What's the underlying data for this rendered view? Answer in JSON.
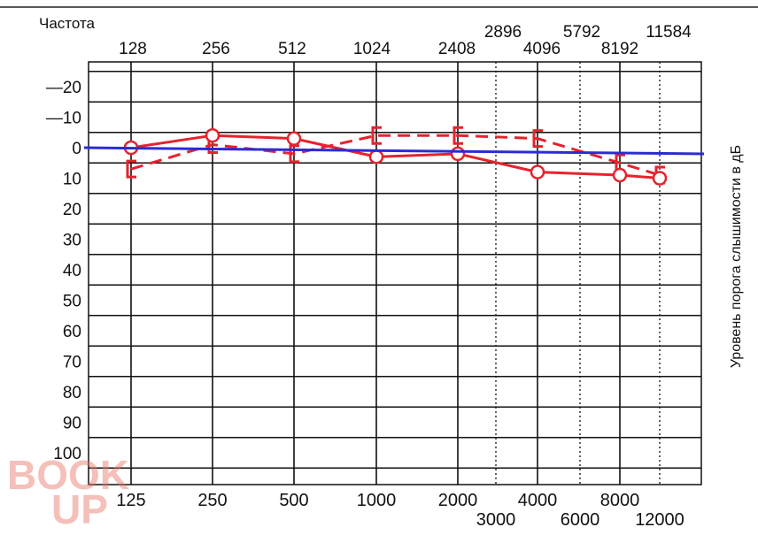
{
  "chart_data": {
    "type": "line",
    "title": "Частота",
    "xlabel": "",
    "ylabel": "Уровень порога слышимости в дБ",
    "y_reversed": true,
    "ylim": [
      -20,
      100
    ],
    "y_ticks": [
      -20,
      -10,
      0,
      10,
      20,
      30,
      40,
      50,
      60,
      70,
      80,
      90,
      100
    ],
    "y_tick_labels": [
      "—20",
      "—10",
      "0",
      "10",
      "20",
      "30",
      "40",
      "50",
      "60",
      "70",
      "80",
      "90",
      "100"
    ],
    "x_bottom_main_ticks": [
      "125",
      "250",
      "500",
      "1000",
      "2000",
      "4000",
      "8000"
    ],
    "x_bottom_intermediate_ticks": [
      "3000",
      "6000",
      "12000"
    ],
    "x_top_main_ticks": [
      "128",
      "256",
      "512",
      "1024",
      "2408",
      "4096",
      "8192"
    ],
    "x_top_intermediate_ticks": [
      "2896",
      "5792",
      "11584"
    ],
    "grid": true,
    "reference_line": {
      "y": 0,
      "color": "#2b2bd6"
    },
    "x": [
      125,
      250,
      500,
      1000,
      2000,
      4000,
      8000,
      12000
    ],
    "series": [
      {
        "style": "solid",
        "marker": "circle",
        "color": "#e5232e",
        "values": [
          0,
          -4,
          -3,
          3,
          2,
          8,
          9,
          10
        ]
      },
      {
        "style": "dashed",
        "marker": "bracket",
        "color": "#e5232e",
        "values": [
          7,
          -1,
          2,
          -4,
          -4,
          -3,
          5,
          9
        ]
      }
    ]
  },
  "watermark": {
    "line1": "BOOK",
    "line2": "UP"
  }
}
